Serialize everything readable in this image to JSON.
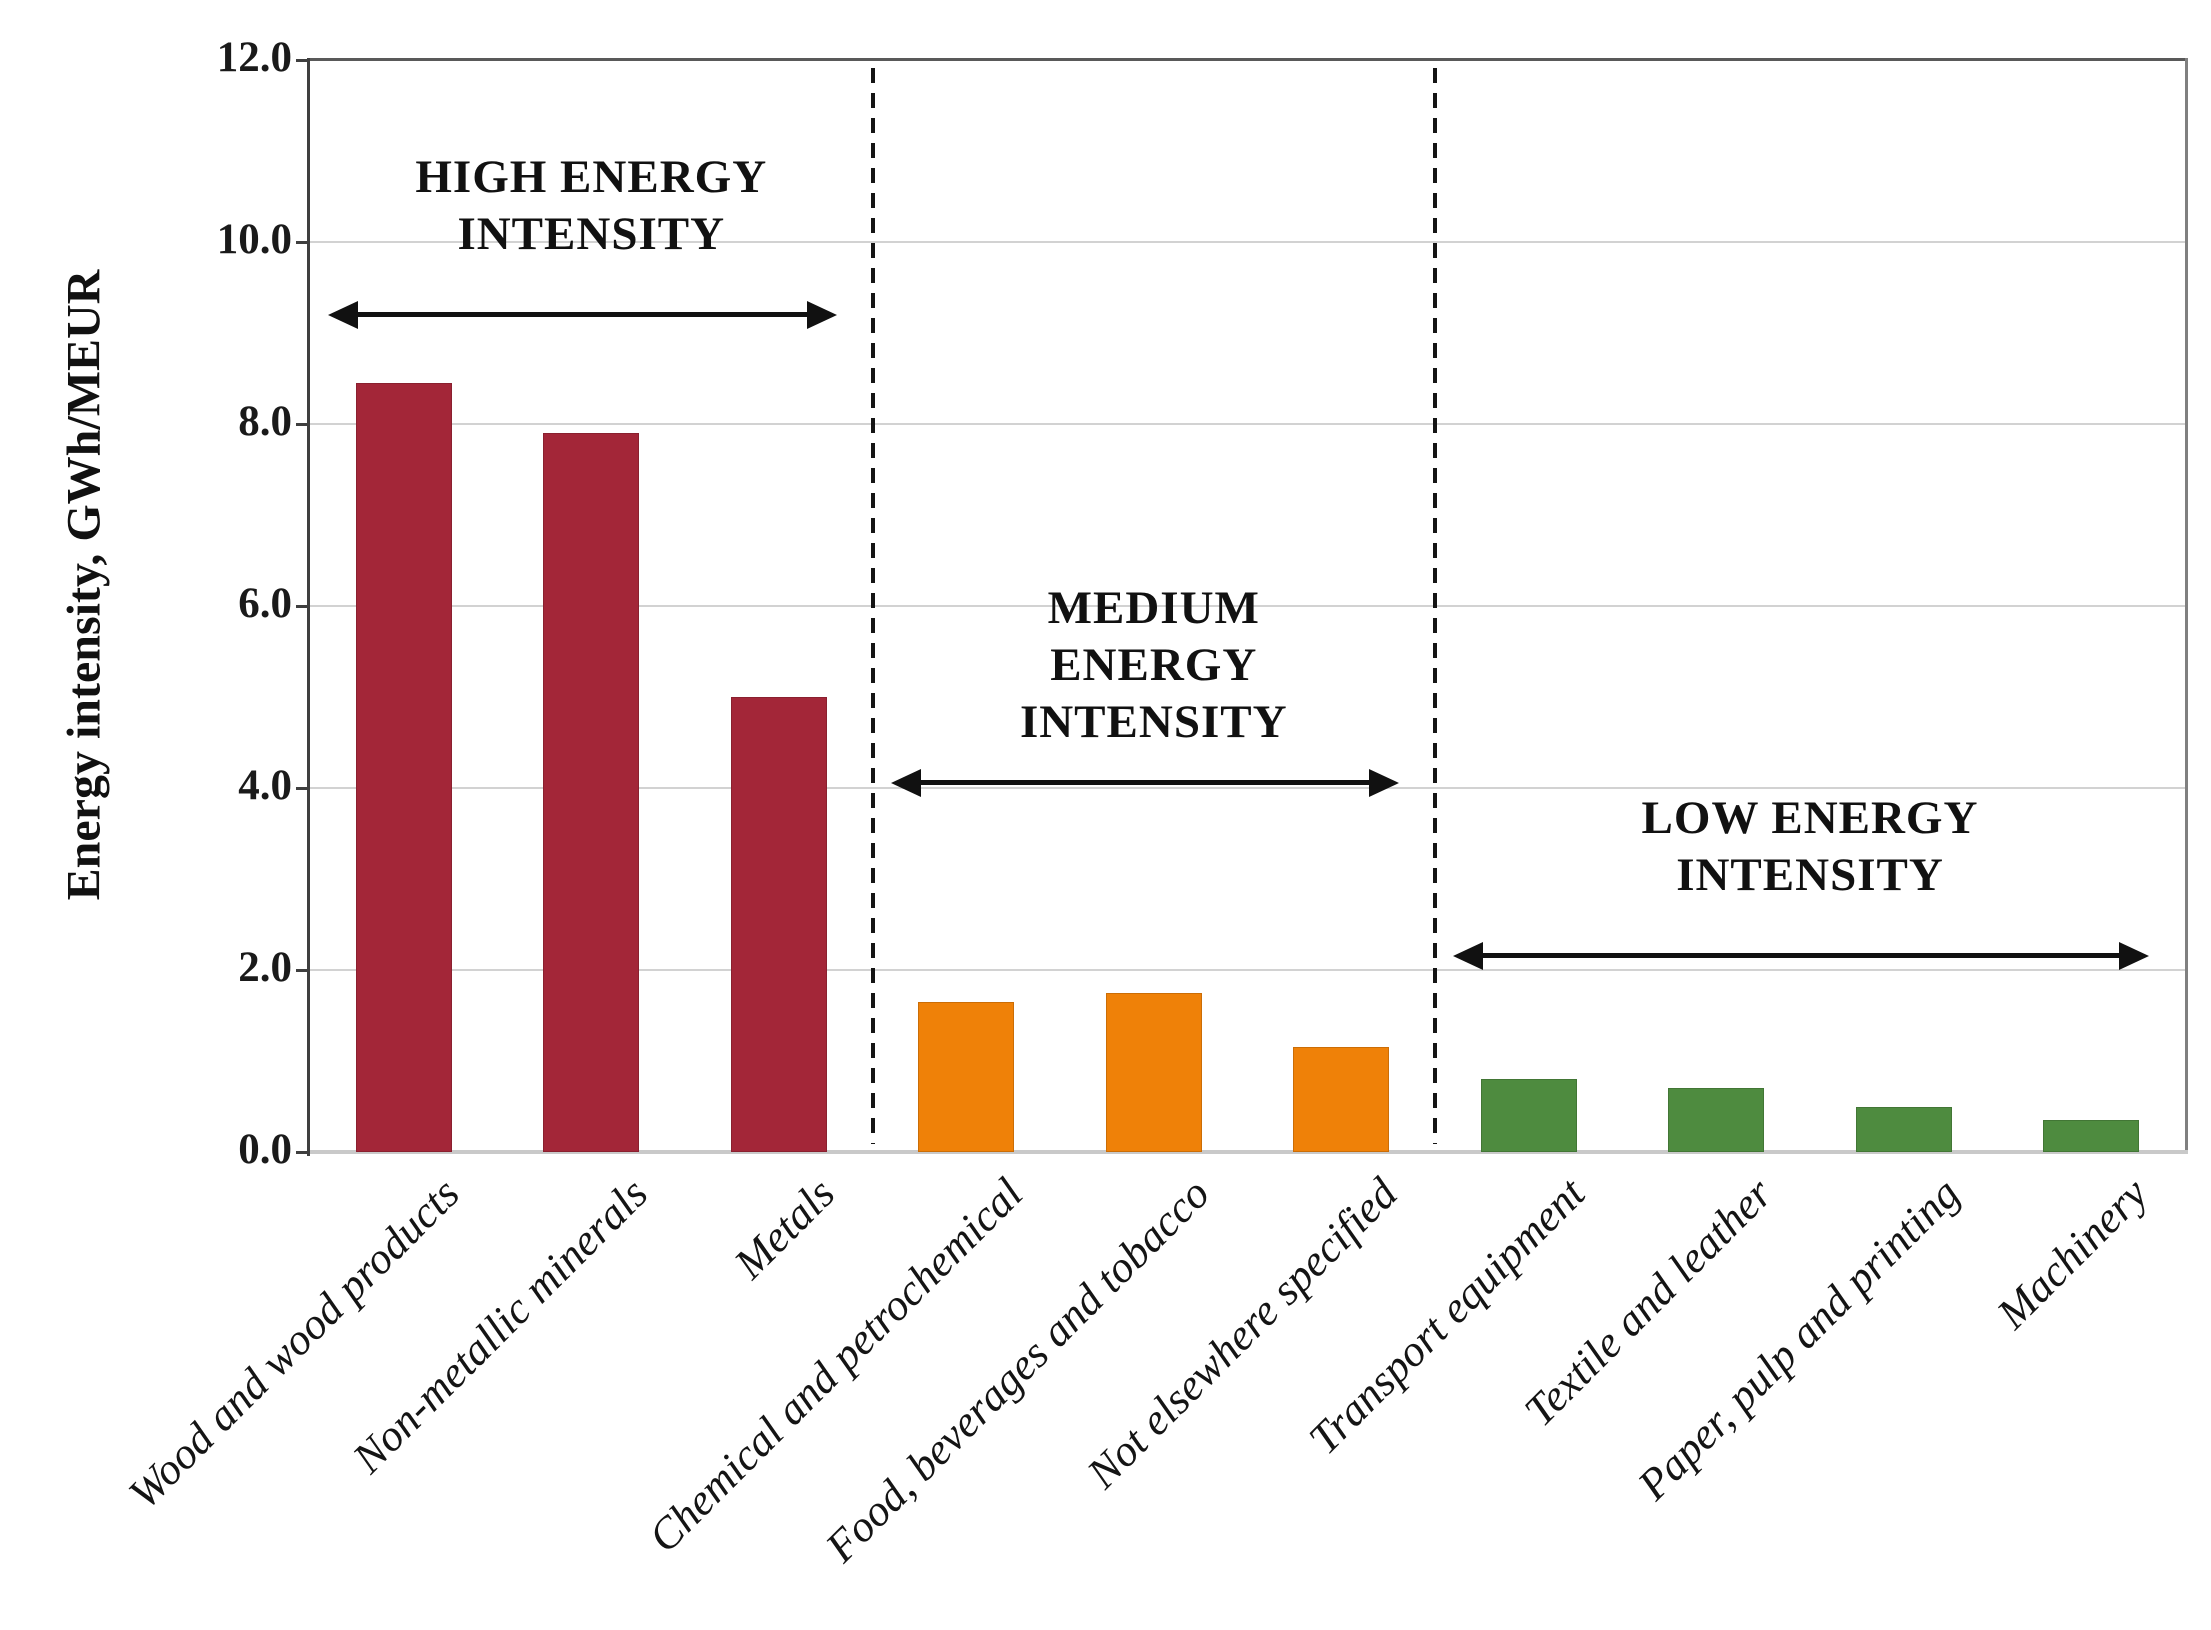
{
  "chart_data": {
    "type": "bar",
    "title": "",
    "ylabel": "Energy intensity, GWh/MEUR",
    "xlabel": "",
    "ylim": [
      0,
      12
    ],
    "ytick_step": 2,
    "ytick_labels": [
      "0.0",
      "2.0",
      "4.0",
      "6.0",
      "8.0",
      "10.0",
      "12.0"
    ],
    "grid": true,
    "legend_position": "none",
    "xtick_rotation_deg": 45,
    "categories": [
      "Wood and wood products",
      "Non-metallic minerals",
      "Metals",
      "Chemical and petrochemical",
      "Food, beverages and tobacco",
      "Not elsewhere specified",
      "Transport equipment",
      "Textile and leather",
      "Paper, pulp and printing",
      "Machinery"
    ],
    "values": [
      8.45,
      7.9,
      5.0,
      1.65,
      1.75,
      1.15,
      0.8,
      0.7,
      0.5,
      0.35
    ],
    "groups": [
      {
        "id": "high",
        "label_lines": [
          "HIGH ENERGY",
          "INTENSITY"
        ],
        "color": "#A32638",
        "start": 0,
        "end": 2,
        "arrow_y_value": 9.2,
        "label_center_value": 10.4
      },
      {
        "id": "medium",
        "label_lines": [
          "MEDIUM",
          "ENERGY",
          "INTENSITY"
        ],
        "color": "#EF8108",
        "start": 3,
        "end": 5,
        "arrow_y_value": 4.05,
        "label_center_value": 5.35
      },
      {
        "id": "low",
        "label_lines": [
          "LOW ENERGY",
          "INTENSITY"
        ],
        "color": "#4E8B3F",
        "start": 6,
        "end": 9,
        "arrow_y_value": 2.15,
        "label_center_value": 3.35
      }
    ],
    "separators_after_category": [
      2,
      5
    ],
    "colors": {
      "grid": "#d2d2d2",
      "axis": "#3f3f3f",
      "frame_top": "#595959",
      "frame_right": "#808080",
      "baseline": "#c9c9c9",
      "annotation": "#111111"
    }
  }
}
